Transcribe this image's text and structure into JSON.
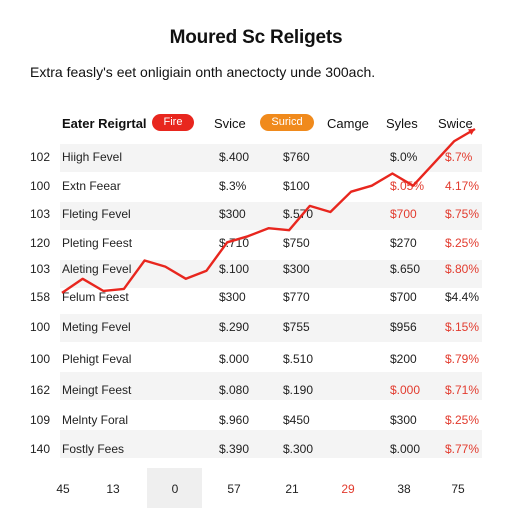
{
  "title": "Moured Sc Religets",
  "subtitle": "Extra feasly's eet onligiain onth anectocty unde 300ach.",
  "header": {
    "cols": [
      "Eater Reigrtal",
      "Fire",
      "Svice",
      "Suricd",
      "Camge",
      "Syles",
      "Swice"
    ],
    "pill_colors": [
      "#e8261e",
      "#f08a1c"
    ]
  },
  "rows": [
    {
      "id": "102",
      "name": "Hiigh Fevel",
      "c1": "$.400",
      "c2": "$760",
      "c3": "$.0%",
      "c4": "$.7%",
      "red3": false,
      "red4": true
    },
    {
      "id": "100",
      "name": "Extn Feear",
      "c1": "$.3%",
      "c2": "$100",
      "c3": "$.05%",
      "c4": "4.17%",
      "red3": true,
      "red4": true
    },
    {
      "id": "103",
      "name": "Fleting Fevel",
      "c1": "$300",
      "c2": "$.570",
      "c3": "$700",
      "c4": "$.75%",
      "red3": true,
      "red4": true
    },
    {
      "id": "120",
      "name": "Pleting Feest",
      "c1": "$.710",
      "c2": "$750",
      "c3": "$270",
      "c4": "$.25%",
      "red3": false,
      "red4": true
    },
    {
      "id": "103",
      "name": "Aleting Fevel",
      "c1": "$.100",
      "c2": "$300",
      "c3": "$.650",
      "c4": "$.80%",
      "red3": false,
      "red4": true
    },
    {
      "id": "158",
      "name": "Felum Feest",
      "c1": "$300",
      "c2": "$770",
      "c3": "$700",
      "c4": "$4.4%",
      "red3": false,
      "red4": false
    },
    {
      "id": "100",
      "name": "Meting Fevel",
      "c1": "$.290",
      "c2": "$755",
      "c3": "$956",
      "c4": "$.15%",
      "red3": false,
      "red4": true
    },
    {
      "id": "100",
      "name": "Plehigt Feval",
      "c1": "$.000",
      "c2": "$.510",
      "c3": "$200",
      "c4": "$.79%",
      "red3": false,
      "red4": true
    },
    {
      "id": "162",
      "name": "Meingt Feest",
      "c1": "$.080",
      "c2": "$.190",
      "c3": "$.000",
      "c4": "$.71%",
      "red3": true,
      "red4": true
    },
    {
      "id": "109",
      "name": "Melnty Foral",
      "c1": "$.960",
      "c2": "$450",
      "c3": "$300",
      "c4": "$.25%",
      "red3": false,
      "red4": true
    },
    {
      "id": "140",
      "name": "Fostly Fees",
      "c1": "$.390",
      "c2": "$.300",
      "c3": "$.000",
      "c4": "$.77%",
      "red3": false,
      "red4": true
    }
  ],
  "footer": [
    "45",
    "13",
    "0",
    "57",
    "21",
    "29",
    "38",
    "75"
  ],
  "footer_red_index": 5,
  "chart_data": {
    "type": "line",
    "series": [
      {
        "color": "#e8261e",
        "x": [
          1,
          2,
          3,
          4,
          5,
          6,
          7,
          8,
          9,
          10,
          11,
          12,
          13,
          14,
          15,
          16,
          17,
          18,
          19,
          20,
          21
        ],
        "values": [
          0.3,
          1.0,
          0.4,
          0.5,
          1.9,
          1.6,
          1.0,
          1.4,
          2.8,
          3.1,
          3.5,
          3.4,
          4.6,
          4.3,
          5.3,
          5.6,
          6.2,
          5.6,
          6.7,
          7.8,
          8.4
        ]
      }
    ]
  },
  "colors": {
    "accent": "#e8261e",
    "orange": "#f08a1c",
    "stripe": "#f4f4f4"
  }
}
